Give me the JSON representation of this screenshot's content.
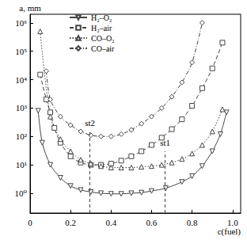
{
  "chart_data": {
    "type": "line",
    "y_label": "a, mm",
    "x_label": "c(fuel)",
    "log": "y",
    "grid": false,
    "legend": "upper left",
    "xlim": [
      0,
      1.04
    ],
    "xticks": [
      0,
      0.2,
      0.4,
      0.6,
      0.8,
      {
        "value": 1,
        "label": "1.0"
      }
    ],
    "ylim": [
      0.2,
      2000000
    ],
    "yticks": [
      {
        "value": 1,
        "label": "10⁰"
      },
      {
        "value": 10,
        "label": "10¹"
      },
      {
        "value": 100,
        "label": "10²"
      },
      {
        "value": 1000,
        "label": "10³"
      },
      {
        "value": 10000,
        "label": "10⁴"
      },
      {
        "value": 100000,
        "label": "10⁵"
      },
      {
        "value": 1000000,
        "label": "10⁶"
      }
    ],
    "series": [
      {
        "name": "H₂–O₂",
        "color": "#444444",
        "marker": "triangle-down",
        "line_style": "solid",
        "x": [
          0.04,
          0.06,
          0.1,
          0.15,
          0.2,
          0.25,
          0.3,
          0.35,
          0.4,
          0.45,
          0.5,
          0.55,
          0.6,
          0.67,
          0.75,
          0.8,
          0.85,
          0.9,
          0.94,
          0.97
        ],
        "values": [
          800,
          60,
          10,
          3.5,
          1.8,
          1.3,
          1.1,
          1.0,
          0.95,
          0.95,
          1.0,
          1.05,
          1.2,
          1.5,
          2.5,
          4,
          9,
          30,
          120,
          700
        ]
      },
      {
        "name": "H₂–air",
        "color": "#444444",
        "marker": "square",
        "line_style": "dashed",
        "x": [
          0.05,
          0.08,
          0.1,
          0.12,
          0.15,
          0.2,
          0.25,
          0.3,
          0.35,
          0.4,
          0.45,
          0.5,
          0.55,
          0.6,
          0.65,
          0.7,
          0.75,
          0.8,
          0.85,
          0.9,
          0.95
        ],
        "values": [
          15000,
          2000,
          700,
          200,
          60,
          20,
          12,
          10,
          10,
          11,
          14,
          20,
          30,
          50,
          90,
          180,
          400,
          1200,
          5000,
          25000,
          200000
        ]
      },
      {
        "name": "CO–O₂",
        "color": "#444444",
        "marker": "triangle",
        "line_style": "dotted",
        "x": [
          0.05,
          0.1,
          0.15,
          0.2,
          0.25,
          0.3,
          0.35,
          0.4,
          0.45,
          0.5,
          0.55,
          0.6,
          0.65,
          0.7,
          0.75,
          0.8,
          0.85,
          0.9,
          0.95
        ],
        "values": [
          500000,
          500,
          80,
          30,
          15,
          11,
          9,
          8,
          8,
          8,
          8.5,
          9,
          10,
          12,
          16,
          25,
          50,
          150,
          900
        ]
      },
      {
        "name": "CO–air",
        "color": "#444444",
        "marker": "diamond",
        "line_style": "dashdot",
        "x": [
          0.08,
          0.1,
          0.15,
          0.2,
          0.25,
          0.3,
          0.35,
          0.4,
          0.45,
          0.5,
          0.55,
          0.6,
          0.65,
          0.7,
          0.75,
          0.8,
          0.85
        ],
        "values": [
          20000,
          2000,
          500,
          250,
          150,
          110,
          100,
          100,
          120,
          170,
          280,
          500,
          1000,
          2500,
          8000,
          40000,
          1000000
        ]
      }
    ],
    "annotations": [
      {
        "text": "st1",
        "x": 0.667,
        "y": 30
      },
      {
        "text": "st2",
        "x": 0.296,
        "y": 150
      }
    ]
  }
}
